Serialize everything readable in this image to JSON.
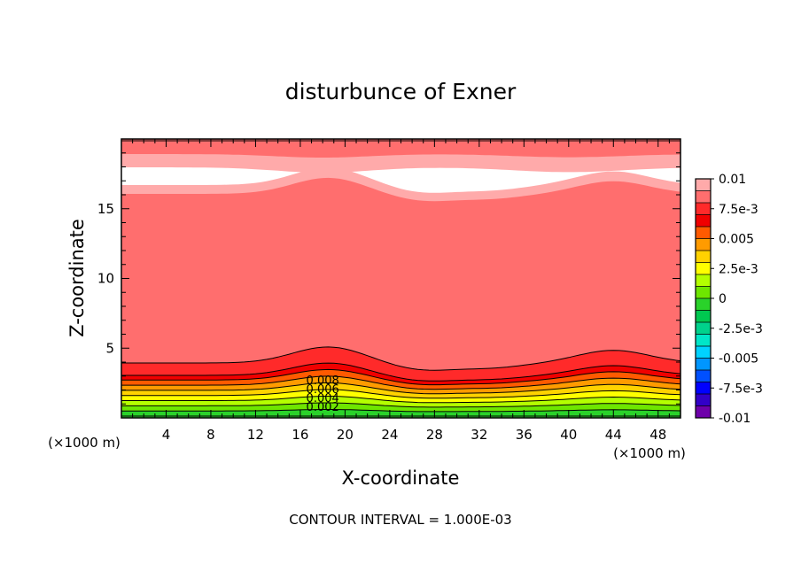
{
  "chart_data": {
    "type": "contour",
    "title": "disturbunce of Exner",
    "xlabel": "X-coordinate",
    "ylabel": "Z-coordinate",
    "x_unit": "(×1000 m)",
    "y_unit": "(×1000 m)",
    "xlim": [
      0,
      50
    ],
    "ylim": [
      0,
      20
    ],
    "x_ticks": [
      4,
      8,
      12,
      16,
      20,
      24,
      28,
      32,
      36,
      40,
      44,
      48
    ],
    "y_ticks": [
      5,
      10,
      15
    ],
    "x_tick_labels": [
      "4",
      "8",
      "12",
      "16",
      "20",
      "24",
      "28",
      "32",
      "36",
      "40",
      "44",
      "48"
    ],
    "y_tick_labels": [
      "5",
      "10",
      "15"
    ],
    "footer": "CONTOUR INTERVAL = 1.000E-03",
    "contour_interval": 0.001,
    "contour_labels": [
      "0.008",
      "0.006",
      "0.004",
      "0.002"
    ],
    "colorbar": {
      "min": -0.01,
      "max": 0.01,
      "labels": [
        "0.01",
        "7.5e-3",
        "0.005",
        "2.5e-3",
        "0",
        "-2.5e-3",
        "-0.005",
        "-7.5e-3",
        "-0.01"
      ],
      "colors": [
        "#ffaaaa",
        "#ff6e6e",
        "#ff2a2a",
        "#f00000",
        "#ff5a00",
        "#ff9b00",
        "#ffd200",
        "#ffff00",
        "#b4ff00",
        "#6ee600",
        "#2ad22a",
        "#00c850",
        "#00d28c",
        "#00e6c8",
        "#00d2ff",
        "#0096ff",
        "#0050ff",
        "#0000ff",
        "#3200c8",
        "#6e00aa"
      ]
    },
    "bottom_band_colors": [
      "#f00000",
      "#ff5a00",
      "#ff9b00",
      "#ffd200",
      "#ffff00",
      "#b4ff00",
      "#6ee600",
      "#2ad22a"
    ],
    "bottom_band_top_values": [
      0.009,
      0.008,
      0.007,
      0.006,
      0.005,
      0.004,
      0.003,
      0.002,
      0.001
    ],
    "grid": false
  }
}
